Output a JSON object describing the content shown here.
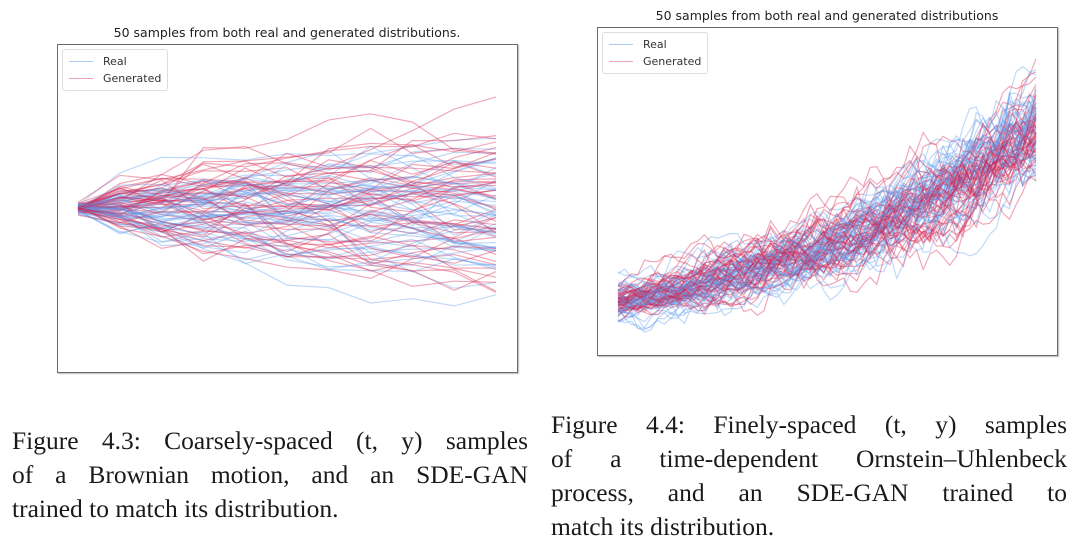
{
  "figures": [
    {
      "id": "fig-4-3",
      "chart_data": {
        "type": "line",
        "title": "50 samples from both real and generated distributions.",
        "xlabel": "",
        "ylabel": "",
        "axes_ticks": false,
        "grid": false,
        "legend_position": "top-left",
        "x": [
          0,
          1,
          2,
          3,
          4,
          5,
          6,
          7,
          8,
          9,
          10
        ],
        "process": "Brownian motion (coarsely-spaced)",
        "series": [
          {
            "name": "Real",
            "color": "#5b9bec",
            "count": 50,
            "start": 0.0,
            "step_std": 1.0,
            "drift": 0.0,
            "end_range_approx": [
              -7.5,
              6.5
            ]
          },
          {
            "name": "Generated",
            "color": "#d81e4a",
            "count": 50,
            "start": 0.0,
            "step_std": 1.0,
            "drift": 0.0,
            "end_range_approx": [
              -7.5,
              5.5
            ]
          }
        ],
        "ylim": [
          -8,
          8
        ]
      },
      "legend": {
        "real": "Real",
        "generated": "Generated"
      },
      "caption_lines": [
        "Figure 4.3: Coarsely-spaced (t, y) samples",
        "of a Brownian motion, and an SDE-GAN",
        "trained to match its distribution."
      ]
    },
    {
      "id": "fig-4-4",
      "chart_data": {
        "type": "line",
        "title": "50 samples from both real and generated distributions",
        "xlabel": "",
        "ylabel": "",
        "axes_ticks": false,
        "grid": false,
        "legend_position": "top-left",
        "n_points": 64,
        "process": "time-dependent Ornstein–Uhlenbeck (finely-spaced)",
        "series": [
          {
            "name": "Real",
            "color": "#5b9bec",
            "count": 50,
            "start_mean": 0.0,
            "end_mean": 6.5,
            "noise": 0.35
          },
          {
            "name": "Generated",
            "color": "#d81e4a",
            "count": 50,
            "start_mean": 0.0,
            "end_mean": 6.5,
            "noise": 0.35
          }
        ],
        "ylim": [
          -1.5,
          10
        ]
      },
      "legend": {
        "real": "Real",
        "generated": "Generated"
      },
      "caption_lines": [
        "Figure 4.4:  Finely-spaced (t, y) samples",
        "of a time-dependent Ornstein–Uhlenbeck",
        "process,  and  an  SDE-GAN  trained  to",
        "match its distribution."
      ]
    }
  ]
}
